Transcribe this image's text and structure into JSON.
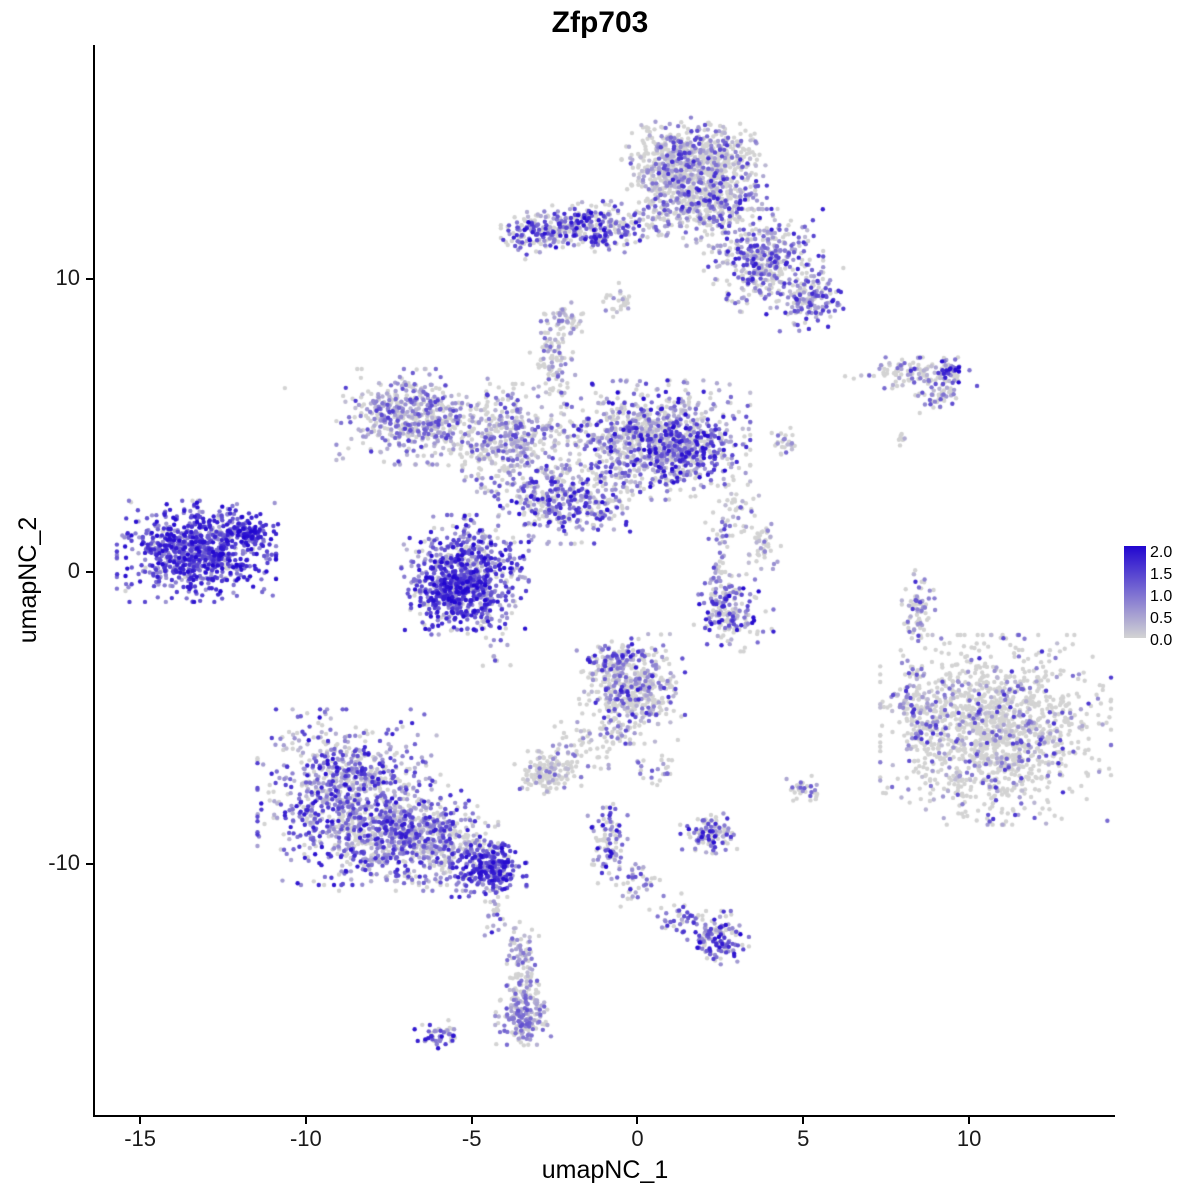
{
  "title": "Zfp703",
  "axes": {
    "x": {
      "label": "umapNC_1",
      "ticks": [
        -15,
        -10,
        -5,
        0,
        5,
        10
      ]
    },
    "y": {
      "label": "umapNC_2",
      "ticks": [
        -10,
        0,
        10
      ]
    }
  },
  "legend": {
    "labels": [
      "2.0",
      "1.5",
      "1.0",
      "0.5",
      "0.0"
    ],
    "max": 2.0,
    "min": 0.0
  },
  "chart_data": {
    "type": "scatter",
    "title": "Zfp703",
    "xlabel": "umapNC_1",
    "ylabel": "umapNC_2",
    "xlim": [
      -16.36,
      14.4
    ],
    "ylim": [
      -18.56,
      18.0
    ],
    "grid": false,
    "legend_position": "right",
    "point_radius_px": 2.2,
    "seed": 42,
    "color_scale": {
      "low": "#d3d3d3",
      "high": "#2106d0",
      "min": 0,
      "max": 2
    },
    "clusters": [
      {
        "n": 550,
        "cx": 1.7,
        "cy": 14.2,
        "sx": 0.85,
        "sy": 0.55,
        "p0": 0.62,
        "vmin": 0.2,
        "vmax": 1.6,
        "pw": 1.6
      },
      {
        "n": 480,
        "cx": 2.1,
        "cy": 12.7,
        "sx": 0.75,
        "sy": 0.65,
        "p0": 0.55,
        "vmin": 0.2,
        "vmax": 1.8,
        "pw": 1.6
      },
      {
        "n": 130,
        "cx": 0.6,
        "cy": 13.4,
        "sx": 0.45,
        "sy": 0.75,
        "p0": 0.65,
        "vmin": 0.2,
        "vmax": 1.2,
        "pw": 1.5
      },
      {
        "n": 360,
        "cx": -1.6,
        "cy": 11.75,
        "sx": 1.05,
        "sy": 0.38,
        "p0": 0.38,
        "vmin": 0.3,
        "vmax": 2.0,
        "pw": 1.2
      },
      {
        "n": 60,
        "cx": -3.3,
        "cy": 11.4,
        "sx": 0.35,
        "sy": 0.3,
        "p0": 0.3,
        "vmin": 0.4,
        "vmax": 2.0,
        "pw": 1.0
      },
      {
        "n": 420,
        "cx": 3.8,
        "cy": 10.6,
        "sx": 0.75,
        "sy": 0.75,
        "p0": 0.45,
        "vmin": 0.2,
        "vmax": 1.8,
        "pw": 1.4
      },
      {
        "n": 150,
        "cx": 5.2,
        "cy": 9.3,
        "sx": 0.42,
        "sy": 0.45,
        "p0": 0.4,
        "vmin": 0.3,
        "vmax": 1.8,
        "pw": 1.2
      },
      {
        "n": 25,
        "cx": -0.55,
        "cy": 9.2,
        "sx": 0.22,
        "sy": 0.28,
        "p0": 0.7,
        "vmin": 0.2,
        "vmax": 0.8,
        "pw": 1.0
      },
      {
        "n": 120,
        "cx": 8.3,
        "cy": 6.8,
        "sx": 0.85,
        "sy": 0.22,
        "p0": 0.62,
        "vmin": 0.2,
        "vmax": 1.6,
        "pw": 2.0
      },
      {
        "n": 35,
        "cx": 9.35,
        "cy": 6.85,
        "sx": 0.25,
        "sy": 0.18,
        "p0": 0.25,
        "vmin": 0.5,
        "vmax": 2.0,
        "pw": 1.0
      },
      {
        "n": 45,
        "cx": 9.1,
        "cy": 6.0,
        "sx": 0.3,
        "sy": 0.25,
        "p0": 0.6,
        "vmin": 0.2,
        "vmax": 1.4,
        "pw": 1.5
      },
      {
        "n": 8,
        "cx": 8.0,
        "cy": 4.5,
        "sx": 0.15,
        "sy": 0.12,
        "p0": 0.8,
        "vmin": 0.2,
        "vmax": 0.8,
        "pw": 1.0
      },
      {
        "n": 520,
        "cx": -6.8,
        "cy": 5.3,
        "sx": 0.95,
        "sy": 0.68,
        "p0": 0.38,
        "vmin": 0.2,
        "vmax": 1.5,
        "pw": 1.5
      },
      {
        "n": 430,
        "cx": -3.9,
        "cy": 4.5,
        "sx": 0.8,
        "sy": 0.8,
        "p0": 0.5,
        "vmin": 0.2,
        "vmax": 1.4,
        "pw": 1.6
      },
      {
        "n": 90,
        "cx": -2.6,
        "cy": 7.3,
        "sx": 0.3,
        "sy": 0.65,
        "p0": 0.55,
        "vmin": 0.2,
        "vmax": 1.2,
        "pw": 1.5
      },
      {
        "n": 45,
        "cx": -2.2,
        "cy": 8.6,
        "sx": 0.3,
        "sy": 0.25,
        "p0": 0.6,
        "vmin": 0.2,
        "vmax": 1.0,
        "pw": 1.5
      },
      {
        "n": 950,
        "cx": 0.4,
        "cy": 4.5,
        "sx": 1.25,
        "sy": 0.85,
        "p0": 0.42,
        "vmin": 0.2,
        "vmax": 2.0,
        "pw": 1.8
      },
      {
        "n": 200,
        "cx": 1.6,
        "cy": 4.1,
        "sx": 0.7,
        "sy": 0.5,
        "p0": 0.25,
        "vmin": 0.4,
        "vmax": 2.0,
        "pw": 1.3
      },
      {
        "n": 300,
        "cx": -2.4,
        "cy": 2.4,
        "sx": 0.75,
        "sy": 0.6,
        "p0": 0.35,
        "vmin": 0.3,
        "vmax": 2.0,
        "pw": 1.5
      },
      {
        "n": 750,
        "cx": -5.2,
        "cy": -0.1,
        "sx": 0.8,
        "sy": 0.85,
        "p0": 0.15,
        "vmin": 0.3,
        "vmax": 2.0,
        "pw": 1.0
      },
      {
        "n": 150,
        "cx": -5.6,
        "cy": -0.9,
        "sx": 0.5,
        "sy": 0.45,
        "p0": 0.05,
        "vmin": 0.8,
        "vmax": 2.0,
        "pw": 1.0
      },
      {
        "n": 820,
        "cx": -13.3,
        "cy": 0.7,
        "sx": 1.0,
        "sy": 0.72,
        "p0": 0.08,
        "vmin": 0.4,
        "vmax": 2.0,
        "pw": 0.9
      },
      {
        "n": 80,
        "cx": -11.8,
        "cy": 1.3,
        "sx": 0.4,
        "sy": 0.35,
        "p0": 0.1,
        "vmin": 0.8,
        "vmax": 2.0,
        "pw": 0.8
      },
      {
        "n": 1,
        "cx": -10.6,
        "cy": 6.3,
        "sx": 0.03,
        "sy": 0.03,
        "p0": 1.0,
        "vmin": 0,
        "vmax": 0,
        "pw": 1.0
      },
      {
        "n": 60,
        "cx": 2.45,
        "cy": 0.0,
        "sx": 0.18,
        "sy": 0.8,
        "p0": 0.5,
        "vmin": 0.3,
        "vmax": 1.6,
        "pw": 1.2
      },
      {
        "n": 170,
        "cx": 2.9,
        "cy": -1.4,
        "sx": 0.5,
        "sy": 0.55,
        "p0": 0.45,
        "vmin": 0.3,
        "vmax": 2.0,
        "pw": 1.3
      },
      {
        "n": 45,
        "cx": 3.9,
        "cy": 0.9,
        "sx": 0.3,
        "sy": 0.45,
        "p0": 0.7,
        "vmin": 0.2,
        "vmax": 1.0,
        "pw": 1.5
      },
      {
        "n": 470,
        "cx": -0.2,
        "cy": -4.0,
        "sx": 0.68,
        "sy": 0.78,
        "p0": 0.6,
        "vmin": 0.2,
        "vmax": 1.8,
        "pw": 1.7
      },
      {
        "n": 70,
        "cx": -0.7,
        "cy": -3.0,
        "sx": 0.35,
        "sy": 0.3,
        "p0": 0.3,
        "vmin": 0.4,
        "vmax": 1.8,
        "pw": 1.2
      },
      {
        "n": 150,
        "cx": -2.7,
        "cy": -6.9,
        "sx": 0.42,
        "sy": 0.32,
        "p0": 0.75,
        "vmin": 0.2,
        "vmax": 1.2,
        "pw": 1.8
      },
      {
        "n": 55,
        "cx": -1.5,
        "cy": -5.9,
        "sx": 0.55,
        "sy": 0.4,
        "p0": 0.7,
        "vmin": 0.2,
        "vmax": 1.0,
        "pw": 1.5
      },
      {
        "n": 25,
        "cx": 0.6,
        "cy": -6.8,
        "sx": 0.25,
        "sy": 0.3,
        "p0": 0.6,
        "vmin": 0.3,
        "vmax": 1.4,
        "pw": 1.0
      },
      {
        "n": 110,
        "cx": 2.2,
        "cy": -8.9,
        "sx": 0.38,
        "sy": 0.3,
        "p0": 0.4,
        "vmin": 0.3,
        "vmax": 1.9,
        "pw": 1.3
      },
      {
        "n": 35,
        "cx": 5.0,
        "cy": -7.5,
        "sx": 0.25,
        "sy": 0.22,
        "p0": 0.75,
        "vmin": 0.3,
        "vmax": 1.2,
        "pw": 1.5
      },
      {
        "n": 1000,
        "cx": -8.7,
        "cy": -7.7,
        "sx": 1.15,
        "sy": 1.25,
        "p0": 0.3,
        "vmin": 0.2,
        "vmax": 1.9,
        "pw": 1.4
      },
      {
        "n": 600,
        "cx": -6.6,
        "cy": -9.1,
        "sx": 1.0,
        "sy": 0.75,
        "p0": 0.35,
        "vmin": 0.2,
        "vmax": 1.8,
        "pw": 1.5
      },
      {
        "n": 260,
        "cx": -4.5,
        "cy": -10.1,
        "sx": 0.48,
        "sy": 0.42,
        "p0": 0.1,
        "vmin": 0.5,
        "vmax": 2.0,
        "pw": 0.9
      },
      {
        "n": 30,
        "cx": -4.35,
        "cy": -11.6,
        "sx": 0.15,
        "sy": 0.55,
        "p0": 0.4,
        "vmin": 0.3,
        "vmax": 1.8,
        "pw": 1.0
      },
      {
        "n": 1350,
        "cx": 10.8,
        "cy": -5.4,
        "sx": 1.45,
        "sy": 1.35,
        "p0": 0.78,
        "vmin": 0.2,
        "vmax": 1.6,
        "pw": 1.6
      },
      {
        "n": 120,
        "cx": 8.4,
        "cy": -4.6,
        "sx": 0.35,
        "sy": 0.8,
        "p0": 0.55,
        "vmin": 0.2,
        "vmax": 1.6,
        "pw": 1.3
      },
      {
        "n": 80,
        "cx": 8.5,
        "cy": -1.3,
        "sx": 0.22,
        "sy": 0.6,
        "p0": 0.6,
        "vmin": 0.2,
        "vmax": 1.6,
        "pw": 1.5
      },
      {
        "n": 90,
        "cx": -0.9,
        "cy": -9.2,
        "sx": 0.25,
        "sy": 0.6,
        "p0": 0.35,
        "vmin": 0.3,
        "vmax": 2.0,
        "pw": 1.2
      },
      {
        "n": 40,
        "cx": -0.1,
        "cy": -10.6,
        "sx": 0.35,
        "sy": 0.35,
        "p0": 0.5,
        "vmin": 0.3,
        "vmax": 1.6,
        "pw": 1.2
      },
      {
        "n": 35,
        "cx": 1.2,
        "cy": -11.7,
        "sx": 0.35,
        "sy": 0.3,
        "p0": 0.5,
        "vmin": 0.3,
        "vmax": 1.6,
        "pw": 1.0
      },
      {
        "n": 140,
        "cx": 2.4,
        "cy": -12.5,
        "sx": 0.4,
        "sy": 0.38,
        "p0": 0.3,
        "vmin": 0.4,
        "vmax": 2.0,
        "pw": 1.2
      },
      {
        "n": 150,
        "cx": -3.5,
        "cy": -13.9,
        "sx": 0.22,
        "sy": 0.95,
        "p0": 0.5,
        "vmin": 0.2,
        "vmax": 1.2,
        "pw": 1.4
      },
      {
        "n": 130,
        "cx": -3.45,
        "cy": -15.2,
        "sx": 0.35,
        "sy": 0.4,
        "p0": 0.35,
        "vmin": 0.3,
        "vmax": 1.3,
        "pw": 1.2
      },
      {
        "n": 55,
        "cx": -6.0,
        "cy": -15.8,
        "sx": 0.3,
        "sy": 0.2,
        "p0": 0.35,
        "vmin": 0.3,
        "vmax": 1.9,
        "pw": 1.0
      },
      {
        "n": 60,
        "cx": -0.9,
        "cy": 2.3,
        "sx": 0.5,
        "sy": 0.45,
        "p0": 0.5,
        "vmin": 0.3,
        "vmax": 1.8,
        "pw": 1.3
      },
      {
        "n": 40,
        "cx": 3.0,
        "cy": 2.2,
        "sx": 0.3,
        "sy": 0.45,
        "p0": 0.65,
        "vmin": 0.2,
        "vmax": 1.2,
        "pw": 1.5
      },
      {
        "n": 25,
        "cx": 4.4,
        "cy": 4.3,
        "sx": 0.3,
        "sy": 0.3,
        "p0": 0.6,
        "vmin": 0.2,
        "vmax": 1.4,
        "pw": 1.2
      },
      {
        "n": 18,
        "cx": -4.4,
        "cy": -2.6,
        "sx": 0.3,
        "sy": 0.5,
        "p0": 0.5,
        "vmin": 0.3,
        "vmax": 1.4,
        "pw": 1.2
      }
    ]
  }
}
